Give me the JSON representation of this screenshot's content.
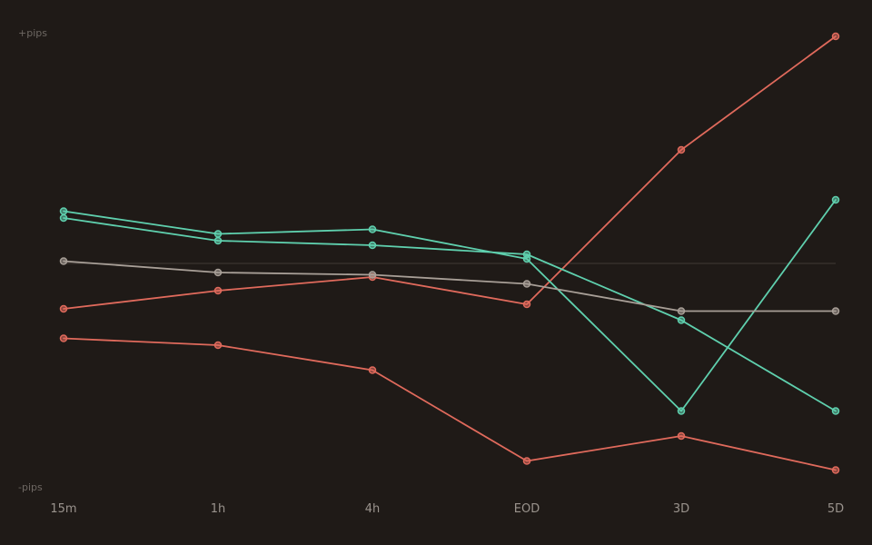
{
  "colors": {
    "background": "#1f1a17",
    "bull": "#5fd0ae",
    "bear": "#e06a5c",
    "neutral": "#a89f97",
    "zero_line": "#3a3430"
  },
  "chart_data": {
    "type": "line",
    "title": "",
    "xlabel": "",
    "ylabel": "",
    "y_top_label": "+pips",
    "y_bottom_label": "-pips",
    "categories": [
      "15m",
      "1h",
      "4h",
      "EOD",
      "3D",
      "5D"
    ],
    "ylim": [
      -100,
      100
    ],
    "grid": false,
    "legend": "none",
    "series": [
      {
        "color_key": "bear",
        "values": [
          -20,
          -12,
          -6,
          -18,
          50,
          100
        ]
      },
      {
        "color_key": "bull",
        "values": [
          23,
          13,
          15,
          2,
          -65,
          28
        ]
      },
      {
        "color_key": "bull",
        "values": [
          20,
          10,
          8,
          4,
          -25,
          -65
        ]
      },
      {
        "color_key": "neutral",
        "values": [
          1,
          -4,
          -5,
          -9,
          -21,
          -21
        ]
      },
      {
        "color_key": "bear",
        "values": [
          -33,
          -36,
          -47,
          -87,
          -76,
          -91
        ]
      }
    ]
  }
}
